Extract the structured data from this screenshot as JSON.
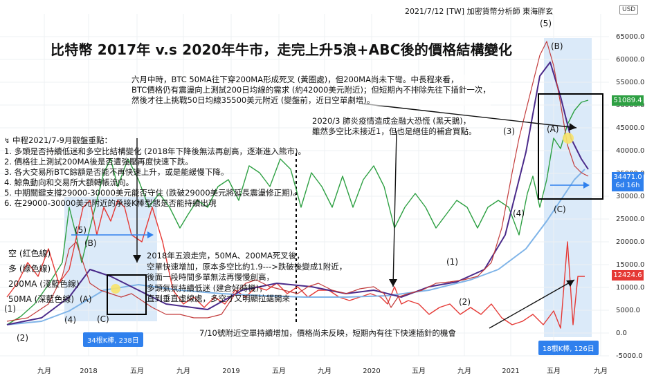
{
  "header": {
    "byline": "2021/7/12 [TW] 加密貨幣分析師 東海胖玄",
    "currency": "USD"
  },
  "title": "比特幣 2017年 v.s 2020年牛市，走完上升5浪+ABC後的價格結構變化",
  "annotations": {
    "june_note": [
      "六月中時，BTC 50MA往下穿200MA形成死叉 (黃圈處)，但200MA尚未下彎。中長程來看，",
      "BTC價格仍有震盪向上測試200日均線的需求 (約42000美元附近)；但短期內不排除先往下插針一次，",
      "然後才往上挑戰50日均線35500美元附近 (變盤前，近日空單劇增)。"
    ],
    "covid_note": [
      "2020/3 肺炎疫情造成金融大恐慌 (黑天鵝)，",
      "雖然多空比未接近1，但也是絕佳的補倉買點。"
    ],
    "watch_points": [
      "中程2021/7-9月觀盤重點：",
      "1. 多頭是否持續低迷和多空比結構變化 (2018年下降後無法再創高，逐漸進入熊市)。",
      "2. 價格往上測試200MA後是否遭強壓再度快速下跌。",
      "3. 各大交易所BTC餘額是否能不再快速上升，或是能緩慢下降。",
      "4. 鯨魚動向和交易所大額轉帳流向。",
      "5. 中期關鍵支撐29000-30000美元能否守住 (跌破29000美元將延長震盪修正期)。",
      "6. 在29000-30000美元附近的承接K棒型態是否能持續出現"
    ],
    "note_2018": [
      "2018年五浪走完，50MA、200MA死叉後，",
      "空單快速增加，原本多空比約1.9--->跌破後變成1附近，",
      "後面一段時間多單無法再慢慢創高，",
      "多頭氣氛持續低迷 (建倉好時機)；",
      "直到垂直虛線處，多空才又明顯拉鋸開來"
    ],
    "note_0710": "7/10號附近空單持續增加，價格尚未反映，短期內有往下快速插針的機會",
    "legend": [
      "空 (紅色線)",
      "多 (綠色線)",
      "200MA (淺藍色線)",
      "50MA (深藍色線)"
    ],
    "range_left": "34根K棒, 238日",
    "range_right": "18根K棒, 126日"
  },
  "wave_labels": {
    "left": [
      "(1)",
      "(2)",
      "(3)",
      "(4)",
      "(5)",
      "(A)",
      "(B)",
      "(C)"
    ],
    "right": [
      "(1)",
      "(2)",
      "(3)",
      "(4)",
      "(5)",
      "(A)",
      "(B)",
      "(C)"
    ]
  },
  "price_boxes": {
    "green": "51089.4",
    "blue_price": "34471.0",
    "blue_timer": "6d 16h",
    "red": "12424.6"
  },
  "colors": {
    "short_line": "#e53935",
    "long_line": "#2ea043",
    "ma200": "#7fb4e8",
    "ma50": "#4a2a8a",
    "range_fill": "#cfe3f7",
    "range_label": "#2f80ed"
  },
  "chart_data": {
    "type": "line",
    "y_axis_labels": [
      "65000.0",
      "60000.0",
      "55000.0",
      "50000.0",
      "45000.0",
      "40000.0",
      "35000.0",
      "30000.0",
      "25000.0",
      "20000.0",
      "15000.0",
      "10000.0",
      "5000.0",
      "0.0",
      "-5000.0"
    ],
    "x_axis_labels": [
      "九月",
      "2018",
      "五月",
      "九月",
      "2019",
      "五月",
      "九月",
      "2020",
      "五月",
      "九月",
      "2021",
      "五月",
      "九月"
    ],
    "ylim": [
      -5000,
      65000
    ]
  }
}
